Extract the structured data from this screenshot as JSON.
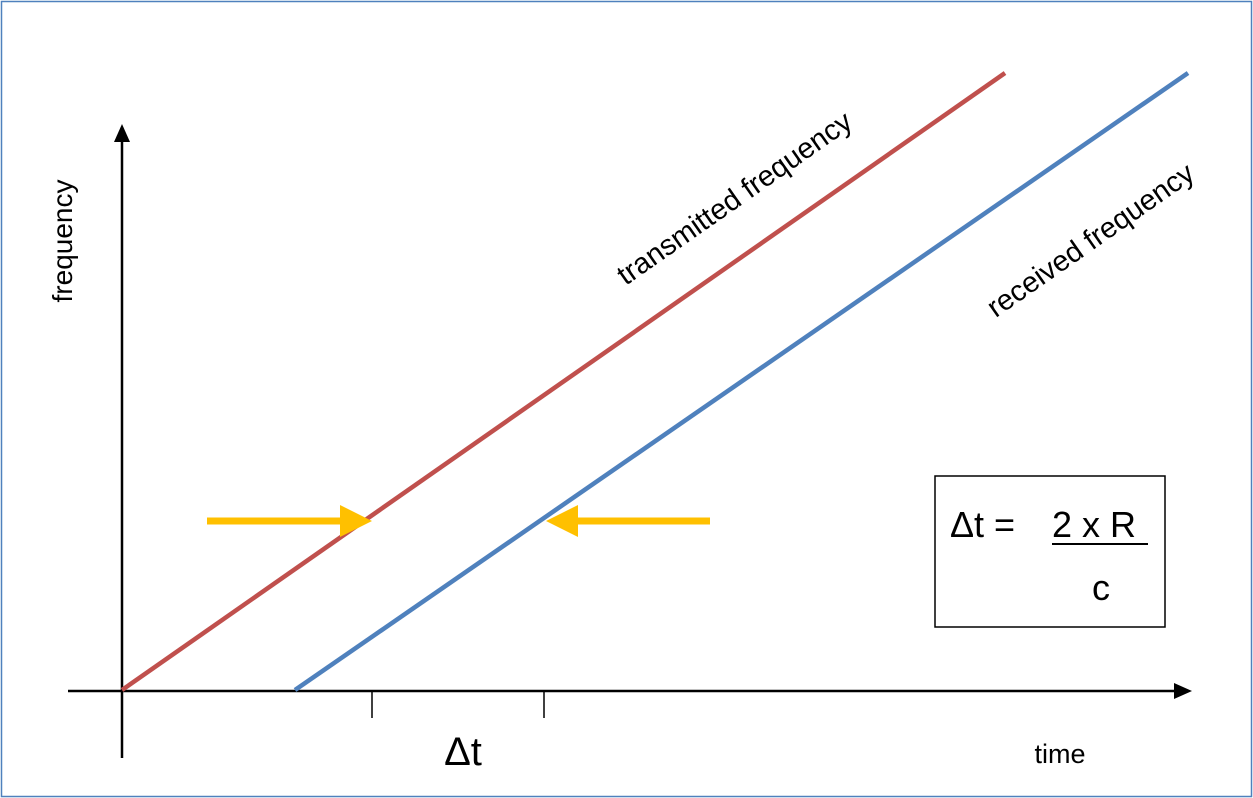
{
  "diagram": {
    "axis_y_label": "frequency",
    "axis_x_label": "time",
    "tx_label": "transmitted frequency",
    "rx_label": "received frequency",
    "delta_t_label": "Δt",
    "formula": {
      "lhs": "Δt = ",
      "numerator": "2 x R",
      "denominator": "c"
    }
  },
  "colors": {
    "border": "#4f81bd",
    "axis": "#000000",
    "transmitted": "#c0504d",
    "received": "#4f81bd",
    "arrow": "#ffc000"
  }
}
